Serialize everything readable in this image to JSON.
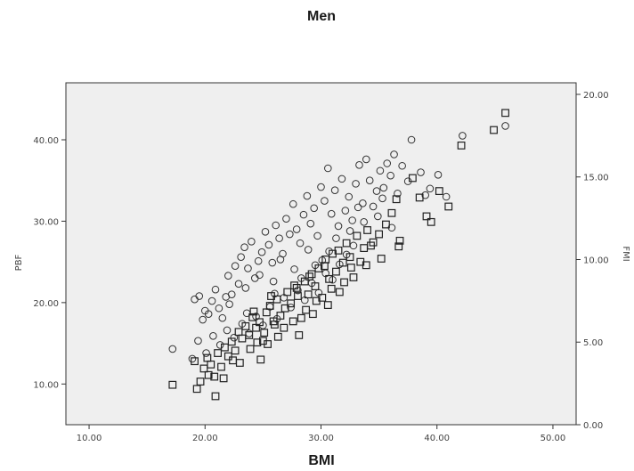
{
  "chart_data": {
    "type": "scatter",
    "title": "Men",
    "xlabel": "BMI",
    "ylabel": "PBF",
    "y2label": "FMI",
    "xlim": [
      8,
      52
    ],
    "ylim": [
      5,
      47
    ],
    "y2lim": [
      0,
      20.7
    ],
    "xticks": [
      "10.00",
      "20.00",
      "30.00",
      "40.00",
      "50.00"
    ],
    "xtick_values": [
      10,
      20,
      30,
      40,
      50
    ],
    "yticks": [
      "10.00",
      "20.00",
      "30.00",
      "40.00"
    ],
    "ytick_values": [
      10,
      20,
      30,
      40
    ],
    "y2ticks": [
      "0.00",
      "5.00",
      "10.00",
      "15.00",
      "20.00"
    ],
    "y2tick_values": [
      0,
      5,
      10,
      15,
      20
    ],
    "grid": false,
    "series": [
      {
        "marker": "circle",
        "axis": "left",
        "points": [
          [
            17.2,
            14.3
          ],
          [
            19.1,
            20.4
          ],
          [
            19.5,
            20.8
          ],
          [
            19.8,
            17.9
          ],
          [
            20.0,
            19.0
          ],
          [
            20.3,
            18.6
          ],
          [
            20.6,
            20.2
          ],
          [
            20.9,
            21.6
          ],
          [
            21.2,
            19.3
          ],
          [
            21.5,
            18.1
          ],
          [
            21.8,
            20.7
          ],
          [
            22.0,
            23.3
          ],
          [
            22.3,
            21.0
          ],
          [
            22.6,
            24.5
          ],
          [
            22.9,
            22.3
          ],
          [
            23.1,
            25.6
          ],
          [
            23.4,
            26.8
          ],
          [
            23.7,
            24.2
          ],
          [
            24.0,
            27.5
          ],
          [
            24.3,
            23.0
          ],
          [
            24.6,
            25.1
          ],
          [
            24.9,
            26.2
          ],
          [
            25.2,
            28.7
          ],
          [
            25.5,
            27.1
          ],
          [
            25.8,
            24.9
          ],
          [
            26.1,
            29.5
          ],
          [
            26.4,
            27.9
          ],
          [
            26.7,
            26.0
          ],
          [
            27.0,
            30.3
          ],
          [
            27.3,
            28.4
          ],
          [
            27.6,
            32.1
          ],
          [
            27.9,
            29.0
          ],
          [
            28.2,
            27.3
          ],
          [
            28.5,
            30.8
          ],
          [
            28.8,
            33.1
          ],
          [
            29.1,
            29.7
          ],
          [
            29.4,
            31.6
          ],
          [
            29.7,
            28.2
          ],
          [
            30.0,
            34.2
          ],
          [
            30.3,
            32.5
          ],
          [
            30.6,
            36.5
          ],
          [
            30.9,
            30.9
          ],
          [
            31.2,
            33.8
          ],
          [
            31.5,
            29.4
          ],
          [
            31.8,
            35.2
          ],
          [
            32.1,
            31.3
          ],
          [
            32.4,
            33.0
          ],
          [
            32.7,
            30.1
          ],
          [
            33.0,
            34.6
          ],
          [
            33.3,
            36.9
          ],
          [
            33.6,
            32.2
          ],
          [
            33.9,
            37.6
          ],
          [
            34.2,
            35.0
          ],
          [
            34.5,
            31.8
          ],
          [
            34.8,
            33.7
          ],
          [
            35.1,
            36.2
          ],
          [
            35.4,
            34.1
          ],
          [
            35.7,
            37.1
          ],
          [
            36.0,
            35.6
          ],
          [
            36.3,
            38.2
          ],
          [
            36.6,
            33.4
          ],
          [
            37.0,
            36.8
          ],
          [
            37.5,
            34.9
          ],
          [
            37.8,
            40.0
          ],
          [
            38.6,
            36.0
          ],
          [
            39.0,
            33.2
          ],
          [
            39.4,
            34.0
          ],
          [
            40.1,
            35.7
          ],
          [
            40.8,
            33.0
          ],
          [
            42.2,
            40.5
          ],
          [
            45.9,
            41.7
          ],
          [
            18.9,
            13.1
          ],
          [
            19.4,
            15.3
          ],
          [
            20.1,
            13.8
          ],
          [
            20.7,
            15.9
          ],
          [
            21.3,
            14.8
          ],
          [
            21.9,
            16.6
          ],
          [
            22.5,
            15.7
          ],
          [
            23.2,
            17.4
          ],
          [
            23.8,
            16.2
          ],
          [
            24.4,
            18.3
          ],
          [
            25.0,
            17.2
          ],
          [
            25.6,
            19.5
          ],
          [
            26.2,
            18.0
          ],
          [
            26.8,
            20.6
          ],
          [
            27.4,
            19.4
          ],
          [
            28.0,
            21.5
          ],
          [
            28.6,
            20.3
          ],
          [
            29.2,
            22.4
          ],
          [
            29.8,
            21.2
          ],
          [
            30.4,
            23.6
          ],
          [
            31.0,
            22.8
          ],
          [
            31.6,
            24.7
          ],
          [
            32.2,
            25.9
          ],
          [
            32.8,
            27.0
          ],
          [
            23.5,
            21.8
          ],
          [
            24.7,
            23.4
          ],
          [
            25.9,
            22.6
          ],
          [
            26.5,
            25.3
          ],
          [
            27.7,
            24.1
          ],
          [
            28.9,
            26.5
          ],
          [
            30.1,
            25.2
          ],
          [
            31.3,
            27.9
          ],
          [
            32.5,
            28.8
          ],
          [
            33.7,
            29.9
          ],
          [
            34.9,
            30.6
          ],
          [
            36.1,
            29.2
          ],
          [
            22.1,
            19.8
          ],
          [
            23.6,
            18.7
          ],
          [
            26.0,
            21.1
          ],
          [
            28.3,
            23.0
          ],
          [
            29.5,
            24.6
          ],
          [
            30.7,
            26.3
          ],
          [
            33.2,
            31.7
          ],
          [
            35.3,
            32.8
          ]
        ]
      },
      {
        "marker": "square",
        "axis": "left",
        "points": [
          [
            17.2,
            9.9
          ],
          [
            19.1,
            12.8
          ],
          [
            19.3,
            9.4
          ],
          [
            19.6,
            10.3
          ],
          [
            19.9,
            11.9
          ],
          [
            20.2,
            13.2
          ],
          [
            20.5,
            12.4
          ],
          [
            20.8,
            10.9
          ],
          [
            20.9,
            8.5
          ],
          [
            21.1,
            13.8
          ],
          [
            21.4,
            12.1
          ],
          [
            21.7,
            14.5
          ],
          [
            22.0,
            13.4
          ],
          [
            22.3,
            15.2
          ],
          [
            22.6,
            14.1
          ],
          [
            22.9,
            16.4
          ],
          [
            23.2,
            15.6
          ],
          [
            23.5,
            17.1
          ],
          [
            23.8,
            16.0
          ],
          [
            24.1,
            18.2
          ],
          [
            24.4,
            16.9
          ],
          [
            24.7,
            17.6
          ],
          [
            25.0,
            15.3
          ],
          [
            25.3,
            18.8
          ],
          [
            25.6,
            19.6
          ],
          [
            25.9,
            17.7
          ],
          [
            26.2,
            20.4
          ],
          [
            26.5,
            18.4
          ],
          [
            26.8,
            16.9
          ],
          [
            27.1,
            21.3
          ],
          [
            27.4,
            19.9
          ],
          [
            27.7,
            22.1
          ],
          [
            28.0,
            20.8
          ],
          [
            28.3,
            18.1
          ],
          [
            28.6,
            22.6
          ],
          [
            28.9,
            21.0
          ],
          [
            29.2,
            23.5
          ],
          [
            29.5,
            22.0
          ],
          [
            29.8,
            24.2
          ],
          [
            30.1,
            20.6
          ],
          [
            30.4,
            25.3
          ],
          [
            30.7,
            22.9
          ],
          [
            31.0,
            26.0
          ],
          [
            31.3,
            23.8
          ],
          [
            31.6,
            21.3
          ],
          [
            31.9,
            24.9
          ],
          [
            32.2,
            27.3
          ],
          [
            32.5,
            25.6
          ],
          [
            32.8,
            23.1
          ],
          [
            33.1,
            28.2
          ],
          [
            33.4,
            25.0
          ],
          [
            33.7,
            26.7
          ],
          [
            34.0,
            28.9
          ],
          [
            34.5,
            27.4
          ],
          [
            35.2,
            25.4
          ],
          [
            35.6,
            29.6
          ],
          [
            36.1,
            31.0
          ],
          [
            36.5,
            32.7
          ],
          [
            36.8,
            27.6
          ],
          [
            37.9,
            35.3
          ],
          [
            38.5,
            32.9
          ],
          [
            39.1,
            30.6
          ],
          [
            39.5,
            29.9
          ],
          [
            40.2,
            33.7
          ],
          [
            41.0,
            31.8
          ],
          [
            42.1,
            39.3
          ],
          [
            44.9,
            41.2
          ],
          [
            45.9,
            43.3
          ],
          [
            22.4,
            12.9
          ],
          [
            23.9,
            14.3
          ],
          [
            24.8,
            13.0
          ],
          [
            25.4,
            14.9
          ],
          [
            26.3,
            15.8
          ],
          [
            27.6,
            17.7
          ],
          [
            28.7,
            19.1
          ],
          [
            29.6,
            20.2
          ],
          [
            30.9,
            21.7
          ],
          [
            32.0,
            22.5
          ],
          [
            24.2,
            18.9
          ],
          [
            25.7,
            20.8
          ],
          [
            26.9,
            19.3
          ],
          [
            27.9,
            21.8
          ],
          [
            29.0,
            23.2
          ],
          [
            30.3,
            24.5
          ],
          [
            31.5,
            26.4
          ],
          [
            32.6,
            24.3
          ],
          [
            34.3,
            27.0
          ],
          [
            36.7,
            26.9
          ],
          [
            20.3,
            11.1
          ],
          [
            21.6,
            10.7
          ],
          [
            23.0,
            12.6
          ],
          [
            24.5,
            15.1
          ],
          [
            25.1,
            16.3
          ],
          [
            26.0,
            17.3
          ],
          [
            28.1,
            16.0
          ],
          [
            29.3,
            18.6
          ],
          [
            30.6,
            19.7
          ],
          [
            33.9,
            24.6
          ],
          [
            35.0,
            28.4
          ]
        ]
      }
    ]
  }
}
